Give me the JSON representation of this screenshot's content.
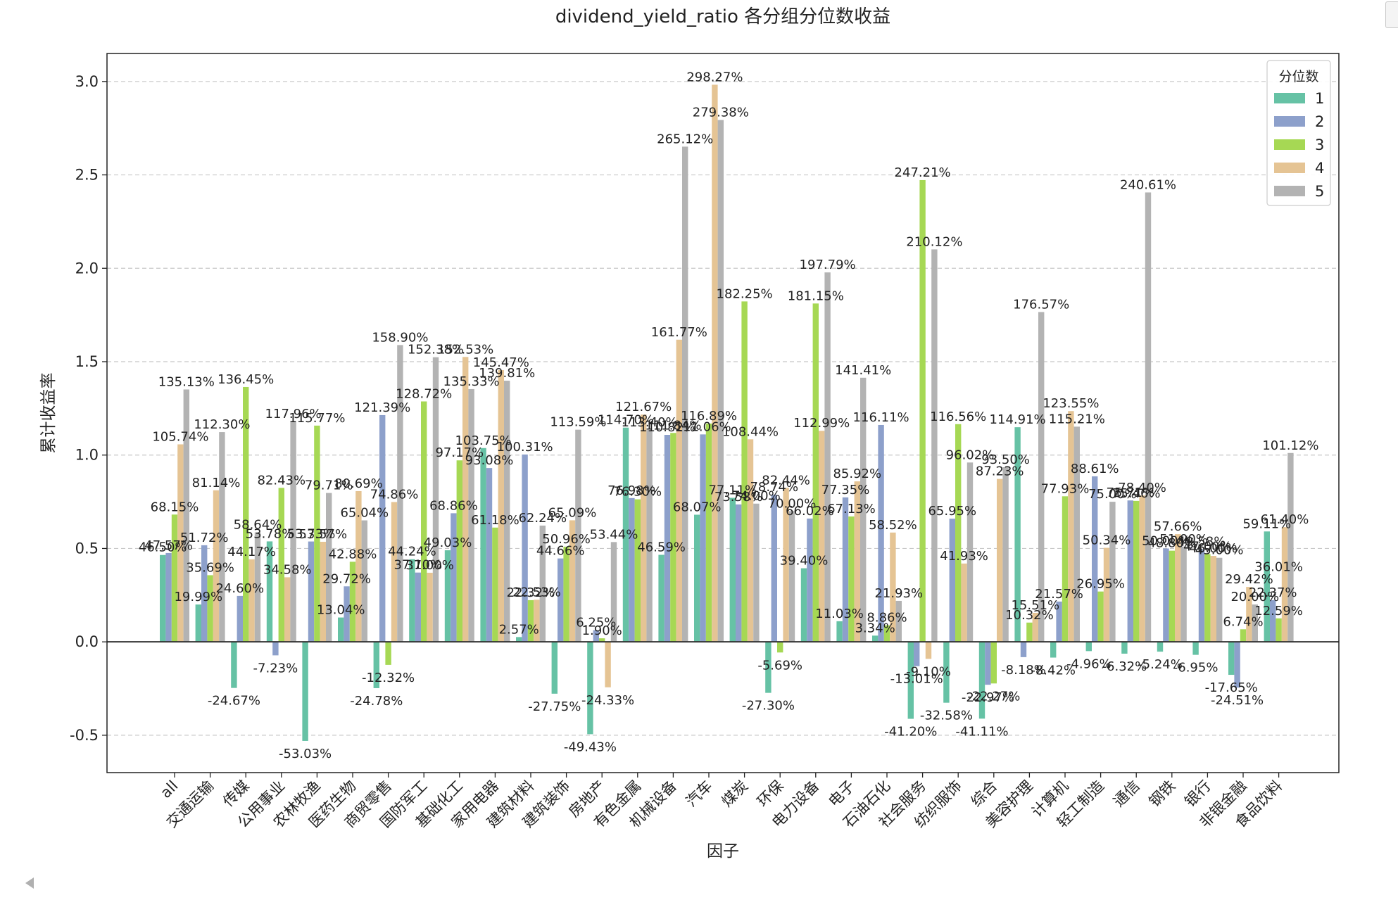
{
  "chart_data": {
    "type": "bar",
    "title": "dividend_yield_ratio 各分组分位数收益",
    "xlabel": "因子",
    "ylabel": "累计收益率",
    "ylim": [
      -0.7,
      3.15
    ],
    "yticks": [
      -0.5,
      0.0,
      0.5,
      1.0,
      1.5,
      2.0,
      2.5,
      3.0
    ],
    "ytick_labels": [
      "-0.5",
      "0.0",
      "0.5",
      "1.0",
      "1.5",
      "2.0",
      "2.5",
      "3.0"
    ],
    "grid": "y-dashed",
    "legend_title": "分位数",
    "legend_position": "top-right",
    "categories": [
      "all",
      "交通运输",
      "传媒",
      "公用事业",
      "农林牧渔",
      "医药生物",
      "商贸零售",
      "国防军工",
      "基础化工",
      "家用电器",
      "建筑材料",
      "建筑装饰",
      "房地产",
      "有色金属",
      "机械设备",
      "汽车",
      "煤炭",
      "环保",
      "电力设备",
      "电子",
      "石油石化",
      "社会服务",
      "纺织服饰",
      "综合",
      "美容护理",
      "计算机",
      "轻工制造",
      "通信",
      "钢铁",
      "银行",
      "非银金融",
      "食品饮料"
    ],
    "series": [
      {
        "name": "1",
        "color": "#66c2a5",
        "values": [
          0.465,
          0.1999,
          -0.2467,
          0.5378,
          -0.5303,
          0.1304,
          -0.2478,
          0.4424,
          0.4903,
          1.0375,
          0.0257,
          -0.2775,
          -0.4943,
          1.147,
          0.4659,
          0.6807,
          0.7711,
          -0.273,
          0.394,
          0.1103,
          0.0334,
          -0.412,
          -0.3258,
          -0.4111,
          1.1491,
          -0.0842,
          -0.0496,
          -0.0632,
          -0.0524,
          -0.0695,
          -0.1765,
          0.5911
        ]
      },
      {
        "name": "2",
        "color": "#8da0cb",
        "values": [
          0.4757,
          0.5172,
          0.246,
          -0.0723,
          0.5373,
          0.2972,
          1.2139,
          0.371,
          0.6886,
          0.9308,
          1.0031,
          0.4466,
          0.0625,
          0.7698,
          1.1082,
          1.1106,
          0.7358,
          0.7874,
          0.6602,
          0.7735,
          1.1611,
          -0.1301,
          0.6595,
          -0.2297,
          -0.0818,
          0.2157,
          0.8861,
          0.7571,
          0.5,
          0.4958,
          -0.2451,
          0.2237
        ]
      },
      {
        "name": "3",
        "color": "#a6d854",
        "values": [
          0.6815,
          0.3569,
          1.3645,
          0.8243,
          1.1577,
          0.4288,
          -0.1232,
          1.2872,
          0.9717,
          0.6118,
          0.2232,
          0.5096,
          0.019,
          0.763,
          1.1184,
          1.1689,
          1.8225,
          -0.0569,
          1.8115,
          0.6713,
          0.0886,
          2.4721,
          1.1656,
          -0.2227,
          0.1032,
          0.7793,
          0.2695,
          0.7546,
          0.488,
          0.47,
          0.0674,
          0.1259
        ]
      },
      {
        "name": "4",
        "color": "#e5c494",
        "values": [
          1.0574,
          0.8114,
          0.4417,
          0.3458,
          0.5357,
          0.8069,
          0.7486,
          0.37,
          1.5253,
          1.4547,
          0.2253,
          0.6509,
          -0.2433,
          1.2167,
          1.6177,
          2.9827,
          1.0844,
          0.8244,
          1.1299,
          0.8592,
          0.5852,
          -0.091,
          0.4193,
          0.8723,
          0.1551,
          1.2355,
          0.5034,
          0.784,
          0.5766,
          0.46,
          0.2942,
          0.614
        ]
      },
      {
        "name": "5",
        "color": "#b3b3b3",
        "values": [
          1.3513,
          1.123,
          0.5864,
          1.1796,
          0.7971,
          0.6504,
          1.589,
          1.5238,
          1.3533,
          1.3981,
          0.6224,
          1.1359,
          0.5344,
          1.134,
          2.6512,
          2.7938,
          0.74,
          0.7,
          1.9779,
          1.4141,
          0.2193,
          2.1012,
          0.9602,
          0.935,
          1.7657,
          1.1521,
          0.75,
          2.4061,
          0.51,
          0.45,
          0.2,
          1.0112
        ]
      }
    ],
    "value_labels": [
      [
        "46.50%",
        "19.99%",
        "-24.67%",
        "53.78%",
        "-53.03%",
        "13.04%",
        "-24.78%",
        "44.24%",
        "49.03%",
        "103.75%",
        "2.57%",
        "-27.75%",
        "-49.43%",
        "114.70%",
        "46.59%",
        "68.07%",
        "77.11%",
        "-27.30%",
        "39.40%",
        "11.03%",
        "3.34%",
        "-41.20%",
        "-32.58%",
        "-41.11%",
        "114.91%",
        "-8.42%",
        "-4.96%",
        "-6.32%",
        "-5.24%",
        "-6.95%",
        "-17.65%",
        "59.11%"
      ],
      [
        "47.57%",
        "51.72%",
        "24.60%",
        "-7.23%",
        "53.73%",
        "29.72%",
        "121.39%",
        "37.10%",
        "68.86%",
        "93.08%",
        "100.31%",
        "44.66%",
        "6.25%",
        "76.98%",
        "110.82%",
        "111.06%",
        "73.58%",
        "78.74%",
        "66.02%",
        "77.35%",
        "116.11%",
        "-13.01%",
        "65.95%",
        "-22.97%",
        "-8.18%",
        "21.57%",
        "88.61%",
        "75.71%",
        "50.00%",
        "49.58%",
        "-24.51%",
        "22.37%"
      ],
      [
        "68.15%",
        "35.69%",
        "136.45%",
        "82.43%",
        "115.77%",
        "42.88%",
        "-12.32%",
        "128.72%",
        "97.17%",
        "61.18%",
        "22.32%",
        "50.96%",
        "1.90%",
        "76.30%",
        "111.84%",
        "116.89%",
        "182.25%",
        "-5.69%",
        "181.15%",
        "67.13%",
        "8.86%",
        "247.21%",
        "116.56%",
        "-22.27%",
        "10.32%",
        "77.93%",
        "26.95%",
        "75.46%",
        "48.80%",
        "47.00%",
        "6.74%",
        "12.59%"
      ],
      [
        "105.74%",
        "81.14%",
        "44.17%",
        "34.58%",
        "53.57%",
        "80.69%",
        "74.86%",
        "37.00%",
        "152.53%",
        "145.47%",
        "22.53%",
        "65.09%",
        "-24.33%",
        "121.67%",
        "161.77%",
        "298.27%",
        "108.44%",
        "82.44%",
        "112.99%",
        "85.92%",
        "58.52%",
        "-9.10%",
        "41.93%",
        "87.23%",
        "15.51%",
        "123.55%",
        "50.34%",
        "78.40%",
        "57.66%",
        "46.00%",
        "29.42%",
        "61.40%"
      ],
      [
        "135.13%",
        "112.30%",
        "58.64%",
        "117.96%",
        "79.71%",
        "65.04%",
        "158.90%",
        "152.38%",
        "135.33%",
        "139.81%",
        "62.24%",
        "113.59%",
        "53.44%",
        "113.40%",
        "265.12%",
        "279.38%",
        "74.00%",
        "70.00%",
        "197.79%",
        "141.41%",
        "21.93%",
        "210.12%",
        "96.02%",
        "93.50%",
        "176.57%",
        "115.21%",
        "75.00%",
        "240.61%",
        "51.00%",
        "45.00%",
        "20.00%",
        "101.12%"
      ]
    ],
    "extra_labels": [
      {
        "category_index": 31,
        "text": "36.01%",
        "value": 0.3601
      }
    ]
  }
}
